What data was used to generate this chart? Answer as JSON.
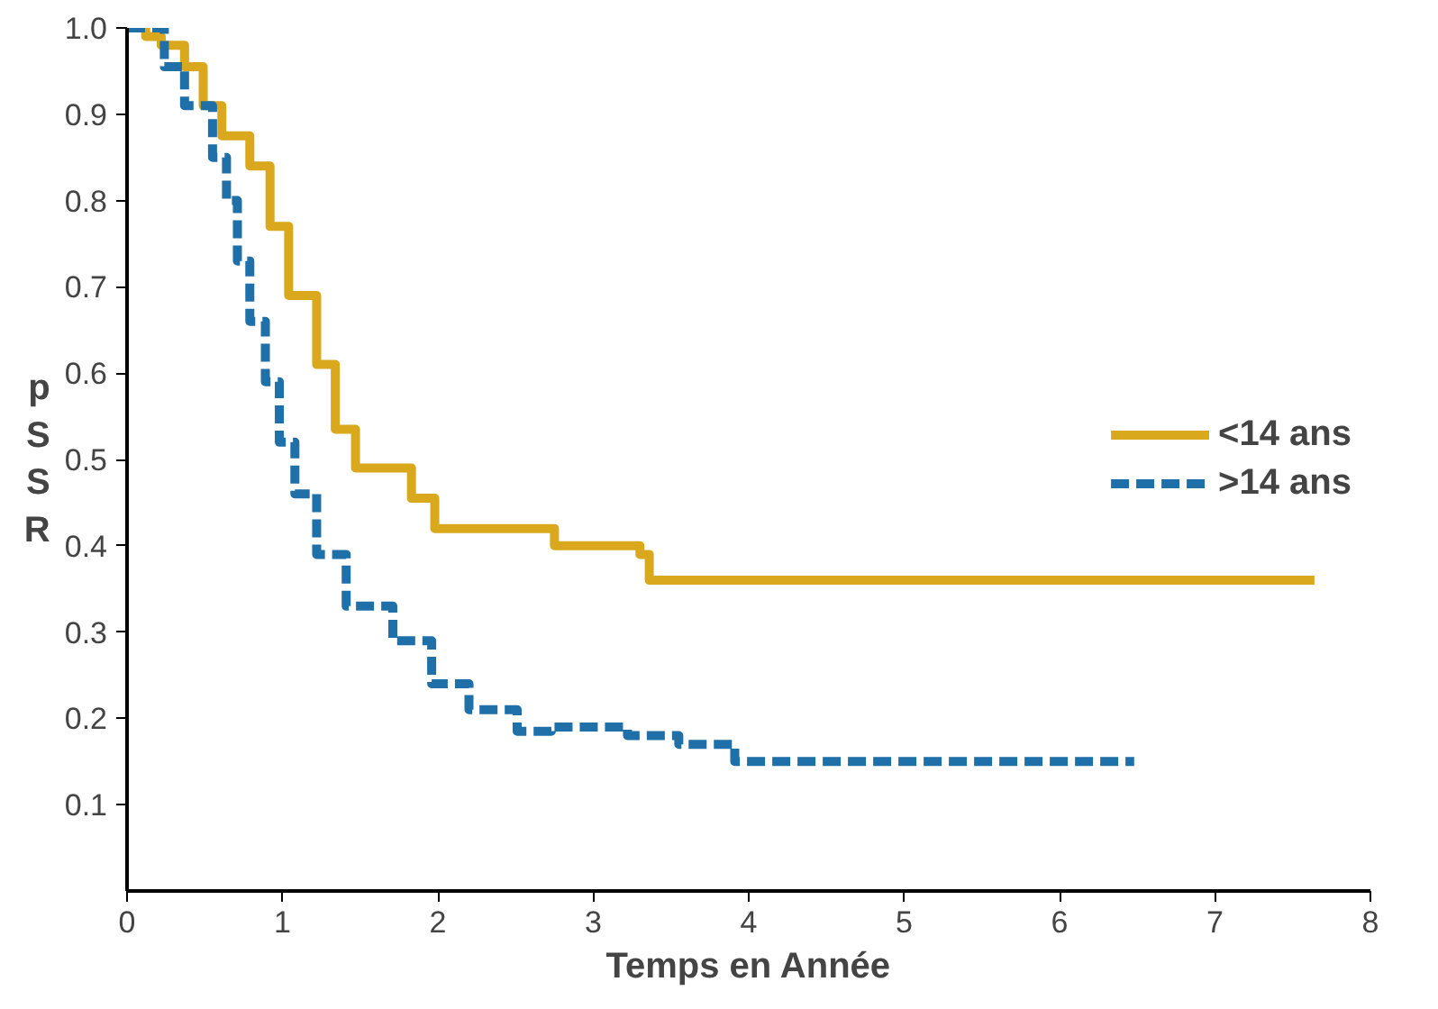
{
  "chart_data": {
    "type": "step",
    "xlabel": "Temps en Année",
    "ylabel": "pSSR",
    "xlim": [
      0,
      8
    ],
    "ylim": [
      0,
      1.0
    ],
    "xticks": [
      0,
      1,
      2,
      3,
      4,
      5,
      6,
      7,
      8
    ],
    "yticks": [
      0.1,
      0.2,
      0.3,
      0.4,
      0.5,
      0.6,
      0.7,
      0.8,
      0.9,
      {
        "value": 1.0,
        "label": "1.0"
      }
    ],
    "grid": false,
    "legend": "right",
    "marker": "none",
    "series": [
      {
        "name": "<14 ans",
        "color": "#d9a81c",
        "line_style": "solid",
        "x": [
          0,
          0.12,
          0.22,
          0.37,
          0.49,
          0.61,
          0.79,
          0.92,
          1.04,
          1.22,
          1.34,
          1.47,
          1.83,
          1.98,
          2.69,
          2.75,
          3.3,
          3.36,
          7.64
        ],
        "values": [
          1.0,
          0.99,
          0.98,
          0.955,
          0.91,
          0.875,
          0.84,
          0.77,
          0.69,
          0.61,
          0.535,
          0.49,
          0.455,
          0.42,
          0.42,
          0.4,
          0.39,
          0.36,
          0.36
        ]
      },
      {
        "name": ">14 ans",
        "color": "#1f6fa8",
        "line_style": "dashed",
        "x": [
          0,
          0.24,
          0.37,
          0.55,
          0.64,
          0.71,
          0.79,
          0.89,
          0.98,
          1.08,
          1.22,
          1.41,
          1.71,
          1.96,
          2.2,
          2.51,
          2.73,
          3.22,
          3.55,
          3.91,
          6.48
        ],
        "values": [
          1.0,
          0.955,
          0.91,
          0.85,
          0.8,
          0.73,
          0.66,
          0.59,
          0.52,
          0.46,
          0.39,
          0.33,
          0.29,
          0.24,
          0.21,
          0.185,
          0.19,
          0.18,
          0.17,
          0.15,
          0.15
        ]
      }
    ]
  }
}
